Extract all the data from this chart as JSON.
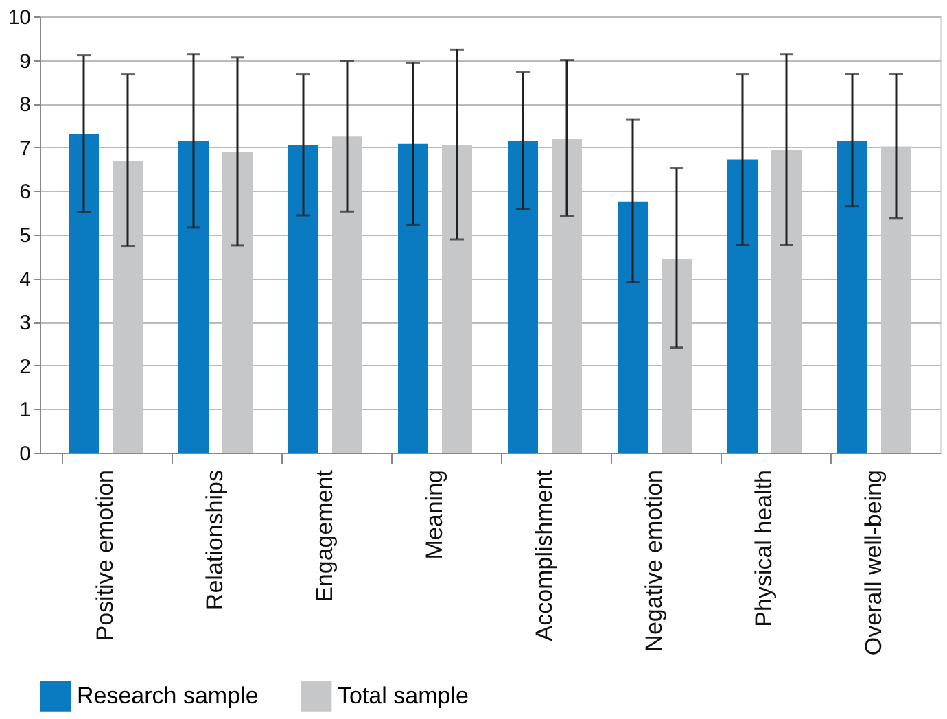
{
  "chart_data": {
    "type": "bar",
    "categories": [
      "Positive emotion",
      "Relationships",
      "Engagement",
      "Meaning",
      "Accomplishment",
      "Negative emotion",
      "Physical health",
      "Overall well-being"
    ],
    "series": [
      {
        "name": "Research sample",
        "color": "#0a7bc1",
        "values": [
          7.31,
          7.14,
          7.06,
          7.08,
          7.15,
          5.76,
          6.72,
          7.15
        ],
        "errors": [
          [
            5.52,
            9.11
          ],
          [
            5.16,
            9.14
          ],
          [
            5.44,
            8.67
          ],
          [
            5.23,
            8.94
          ],
          [
            5.59,
            8.72
          ],
          [
            3.91,
            7.64
          ],
          [
            4.76,
            8.67
          ],
          [
            5.65,
            8.68
          ]
        ]
      },
      {
        "name": "Total sample",
        "color": "#c6c7c9",
        "values": [
          6.69,
          6.9,
          7.26,
          7.06,
          7.2,
          4.45,
          6.94,
          7.02
        ],
        "errors": [
          [
            4.74,
            8.67
          ],
          [
            4.75,
            9.06
          ],
          [
            5.53,
            8.97
          ],
          [
            4.89,
            9.24
          ],
          [
            5.43,
            9.0
          ],
          [
            2.41,
            6.52
          ],
          [
            4.76,
            9.14
          ],
          [
            5.38,
            8.68
          ]
        ]
      }
    ],
    "ylim": [
      0,
      10
    ],
    "yticks": [
      0,
      1,
      2,
      3,
      4,
      5,
      6,
      7,
      8,
      9,
      10
    ],
    "grid": "y",
    "legend": "bottom"
  }
}
